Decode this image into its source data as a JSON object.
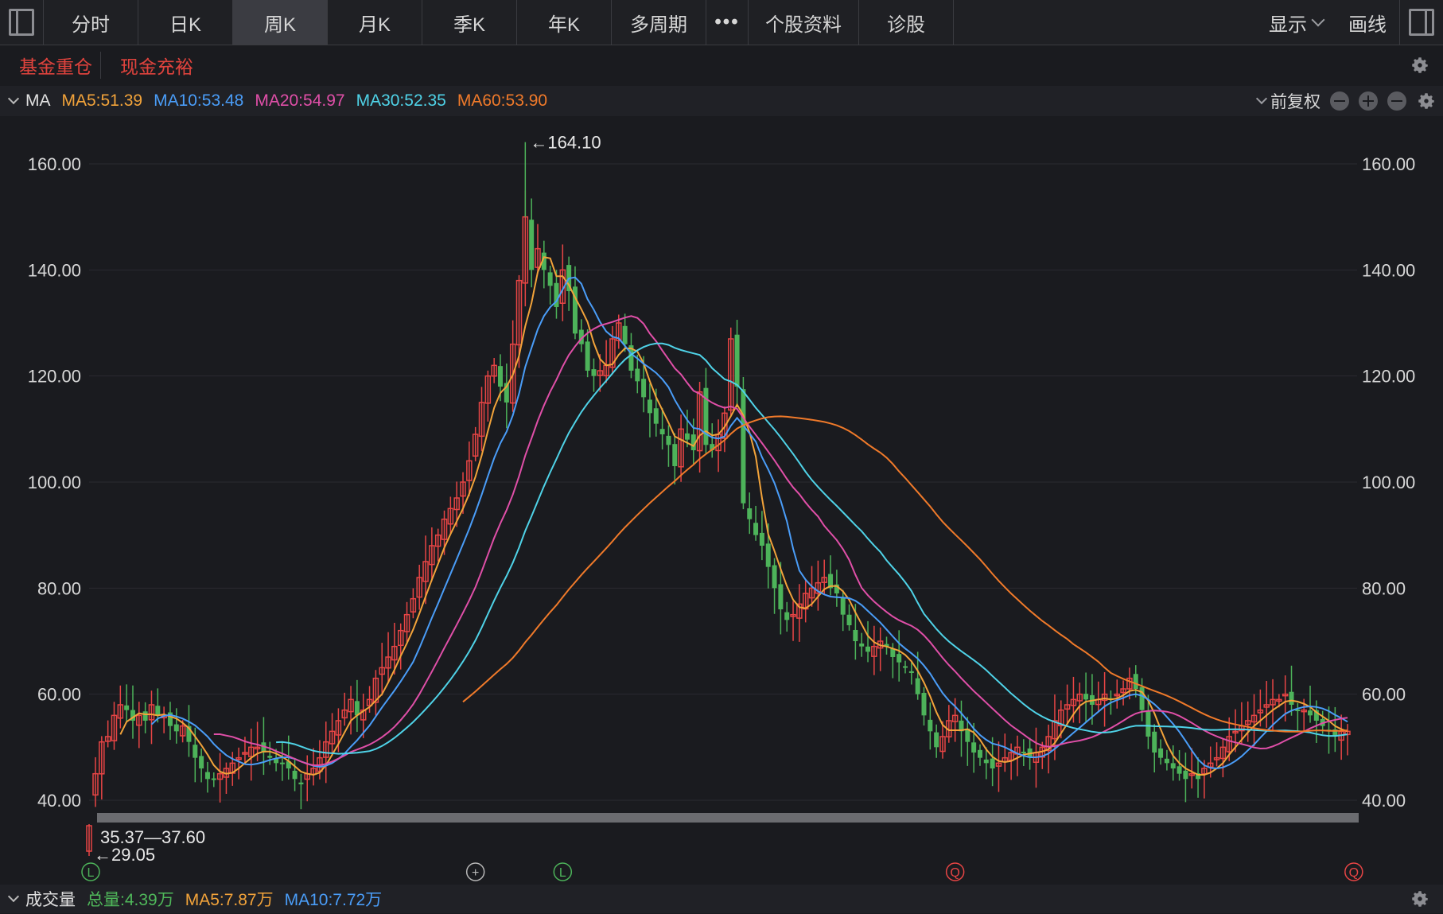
{
  "toolbar": {
    "tabs": [
      "分时",
      "日K",
      "周K",
      "月K",
      "季K",
      "年K",
      "多周期"
    ],
    "active_tab": "周K",
    "more": "•••",
    "stock_info": "个股资料",
    "diagnose": "诊股",
    "display": "显示",
    "draw": "画线"
  },
  "tags": [
    "基金重仓",
    "现金充裕"
  ],
  "ma_bar": {
    "title": "MA",
    "items": [
      {
        "text": "MA5:51.39",
        "color": "#f2a33a"
      },
      {
        "text": "MA10:53.48",
        "color": "#4a9df8"
      },
      {
        "text": "MA20:54.97",
        "color": "#e04fa8"
      },
      {
        "text": "MA30:52.35",
        "color": "#4fd3e8"
      },
      {
        "text": "MA60:53.90",
        "color": "#f07a2a"
      }
    ],
    "adjust": "前复权"
  },
  "volume_bar": {
    "title": "成交量",
    "items": [
      {
        "text": "总量:4.39万",
        "color": "#4fb85a"
      },
      {
        "text": "MA5:7.87万",
        "color": "#f2a33a"
      },
      {
        "text": "MA10:7.72万",
        "color": "#4a9df8"
      }
    ]
  },
  "chart_data": {
    "type": "candlestick",
    "y_ticks": [
      "160.00",
      "140.00",
      "120.00",
      "100.00",
      "80.00",
      "60.00",
      "40.00"
    ],
    "ylim": [
      40,
      160
    ],
    "high_label": "←164.10",
    "low_label": "←29.05",
    "range_label": "35.37—37.60",
    "up_color": "#e84545",
    "down_color": "#4db35a",
    "event_markers": [
      {
        "label": "L",
        "color": "#4db35a",
        "index": 0
      },
      {
        "label": "+",
        "color": "#b8b8b8",
        "index": 61
      },
      {
        "label": "L",
        "color": "#4db35a",
        "index": 75
      },
      {
        "label": "Q",
        "color": "#e84545",
        "index": 138
      },
      {
        "label": "Q",
        "color": "#e84545",
        "index": 202
      }
    ],
    "closes": [
      45,
      51,
      52,
      56,
      58,
      57,
      55,
      56,
      55,
      58,
      56,
      56,
      54,
      53,
      54,
      51,
      48,
      46,
      44,
      44,
      45,
      46,
      47,
      48,
      49,
      50,
      50,
      49,
      48,
      47,
      47,
      46,
      44,
      43,
      45,
      46,
      48,
      51,
      53,
      55,
      57,
      59,
      56,
      57,
      59,
      63,
      65,
      67,
      69,
      72,
      75,
      78,
      82,
      85,
      88,
      90,
      93,
      95,
      97,
      100,
      104,
      109,
      115,
      120,
      122,
      118,
      115,
      126,
      138,
      150,
      140,
      144,
      140,
      137,
      133,
      140,
      136,
      128,
      126,
      121,
      120,
      121,
      122,
      127,
      130,
      126,
      121,
      119,
      116,
      113,
      111,
      109,
      107,
      103,
      110,
      108,
      106,
      117,
      107,
      106,
      109,
      113,
      127,
      118,
      96,
      93,
      90,
      88,
      84,
      80,
      76,
      74,
      75,
      77,
      79,
      80,
      81,
      82,
      80,
      79,
      75,
      73,
      70,
      69,
      68,
      69,
      70,
      69,
      67,
      66,
      65,
      64,
      60,
      56,
      53,
      50,
      52,
      55,
      56,
      53,
      51,
      49,
      48,
      47,
      46,
      47,
      48,
      49,
      50,
      49,
      48,
      49,
      50,
      52,
      55,
      57,
      58,
      59,
      60,
      59,
      58,
      59,
      60,
      59,
      60,
      61,
      63,
      61,
      57,
      52,
      49,
      48,
      47,
      46,
      45,
      44,
      45,
      44,
      46,
      47,
      48,
      50,
      52,
      53,
      54,
      55,
      56,
      57,
      58,
      59,
      59,
      60,
      58,
      57,
      57,
      56,
      55,
      54,
      53,
      52,
      53,
      53
    ]
  }
}
